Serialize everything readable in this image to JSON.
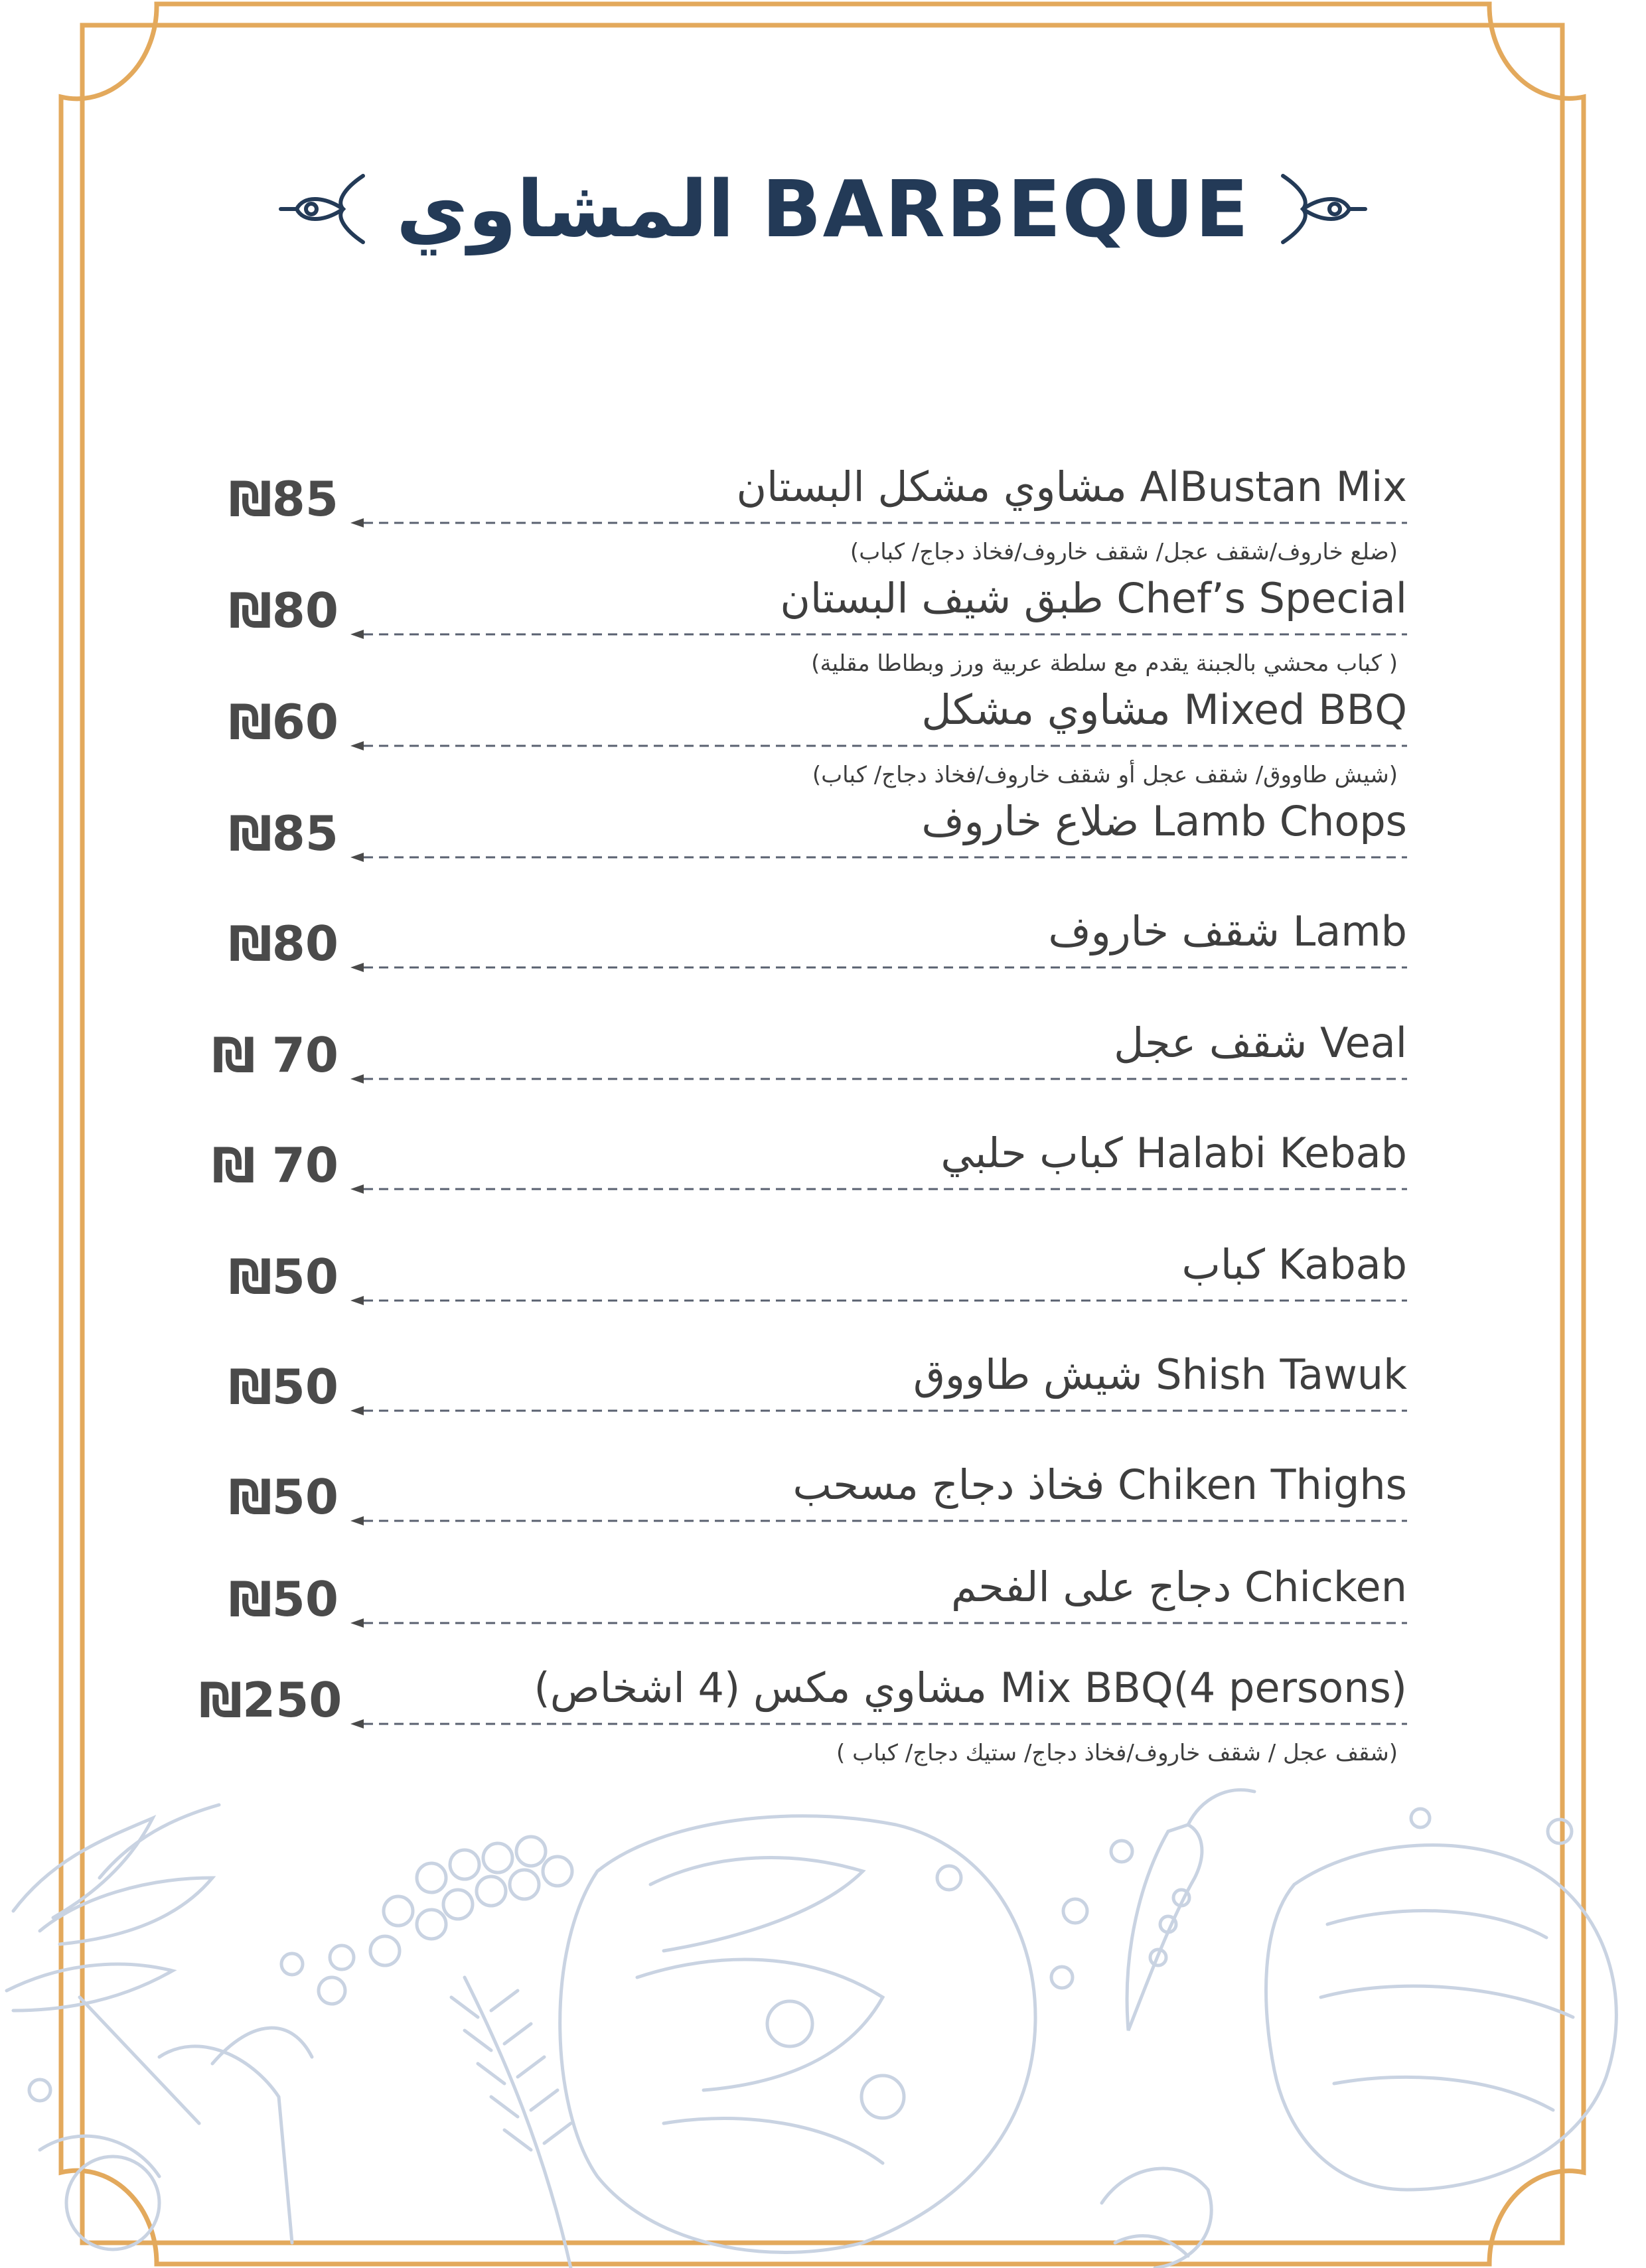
{
  "colors": {
    "frame_gold": "#e3a95c",
    "title_navy": "#233a57",
    "text_gray": "#3e3e3e",
    "sketch_blue": "#c9d3e2"
  },
  "title": {
    "text": "المشاوي BARBEQUE",
    "left_ornament": "scroll-ornament-icon",
    "right_ornament": "scroll-ornament-icon"
  },
  "items": [
    {
      "name": "مشاوي مشكل البستان  AlBustan Mix",
      "price": "₪85",
      "desc": "(ضلع خاروف/شقف عجل/ شقف خاروف/فخاذ دجاج/ كباب)"
    },
    {
      "name": "طبق شيف البستان  Chef’s Special",
      "price": "₪80",
      "desc": "(كباب محشي بالجبنة يقدم مع سلطة عربية ورز وبطاطا مقلية )"
    },
    {
      "name": "مشاوي مشكل  Mixed BBQ",
      "price": "₪60",
      "desc": "(شيش طاووق/ شقف عجل أو شقف خاروف/فخاذ دجاج/ كباب)"
    },
    {
      "name": "ضلاع خاروف Lamb Chops",
      "price": "₪85",
      "desc": ""
    },
    {
      "name": "شقف خاروف  Lamb",
      "price": "₪80",
      "desc": ""
    },
    {
      "name": "شقف عجل   Veal",
      "price": "₪ 70",
      "desc": ""
    },
    {
      "name": "كباب حلبي  Halabi Kebab",
      "price": "₪ 70",
      "desc": ""
    },
    {
      "name": "كباب  Kabab",
      "price": "₪50",
      "desc": ""
    },
    {
      "name": "شيش طاووق  Shish Tawuk",
      "price": "₪50",
      "desc": ""
    },
    {
      "name": "فخاذ دجاج مسحب  Chiken Thighs",
      "price": "₪50",
      "desc": ""
    },
    {
      "name": "دجاج على الفحم  Chicken",
      "price": "₪50",
      "desc": ""
    },
    {
      "name": "مشاوي مكس (4 اشخاص)  Mix BBQ(4 persons)",
      "price": "₪250",
      "desc": "( شقف عجل / شقف خاروف/فخاذ دجاج/ ستيك دجاج/ كباب)"
    }
  ],
  "decoration": {
    "bottom_art": "food-sketch-illustration"
  }
}
